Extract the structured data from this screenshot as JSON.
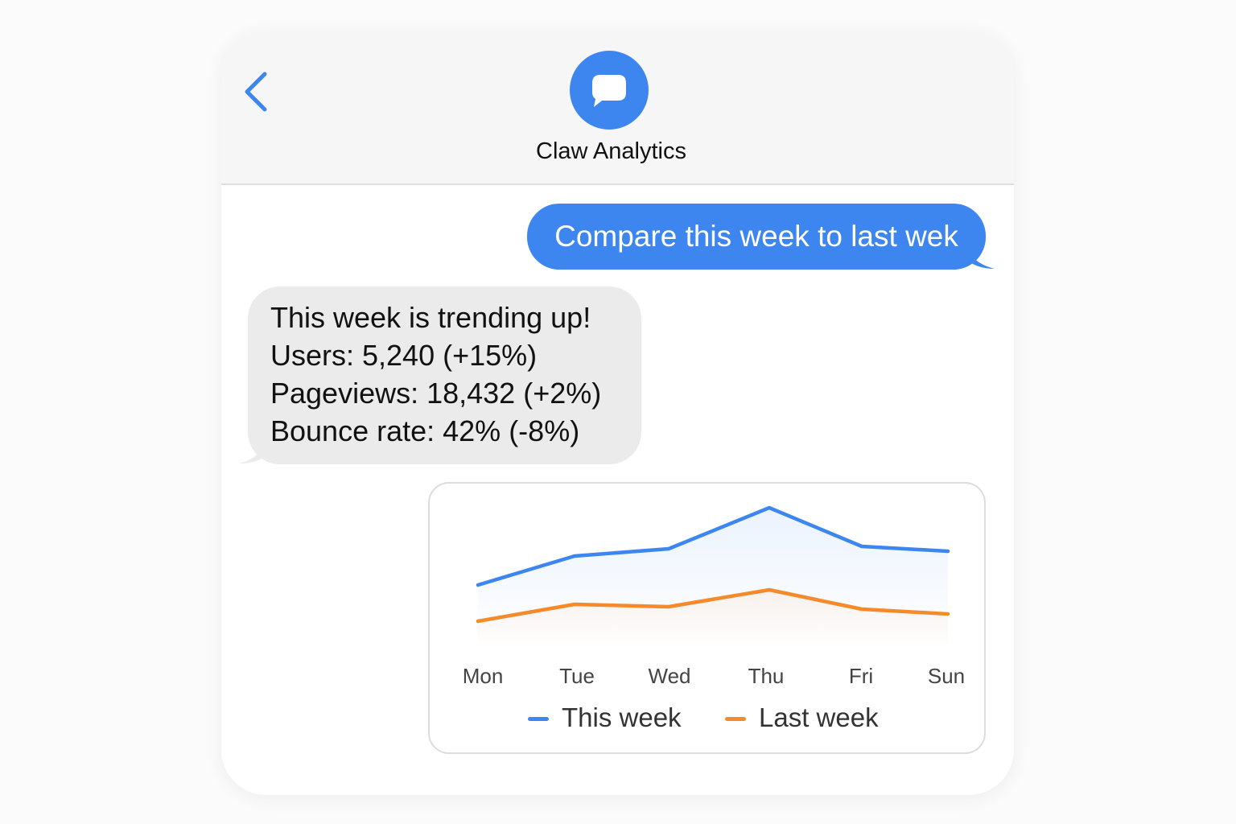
{
  "header": {
    "contact_name": "Claw Analytics",
    "back_icon": "chevron-left-icon",
    "avatar_icon": "chat-bubble-icon"
  },
  "messages": {
    "outgoing": {
      "text": "Compare this week to last wek"
    },
    "incoming": {
      "lines": [
        "This week is trending up!",
        "Users: 5,240 (+15%)",
        "Pageviews: 18,432 (+2%)",
        "Bounce rate: 42% (-8%)"
      ]
    }
  },
  "colors": {
    "accent": "#3d86f0",
    "this_week": "#3d86f0",
    "last_week": "#f58a2b",
    "incoming_bubble": "#ebebeb"
  },
  "chart_data": {
    "type": "line",
    "categories": [
      "Mon",
      "Tue",
      "Wed",
      "Thu",
      "Fri",
      "Sun"
    ],
    "series": [
      {
        "name": "This week",
        "values": [
          48,
          60,
          63,
          80,
          64,
          62
        ]
      },
      {
        "name": "Last week",
        "values": [
          33,
          40,
          39,
          46,
          38,
          36
        ]
      }
    ],
    "ylim": [
      0,
      90
    ],
    "grid": false,
    "legend": "bottom"
  }
}
